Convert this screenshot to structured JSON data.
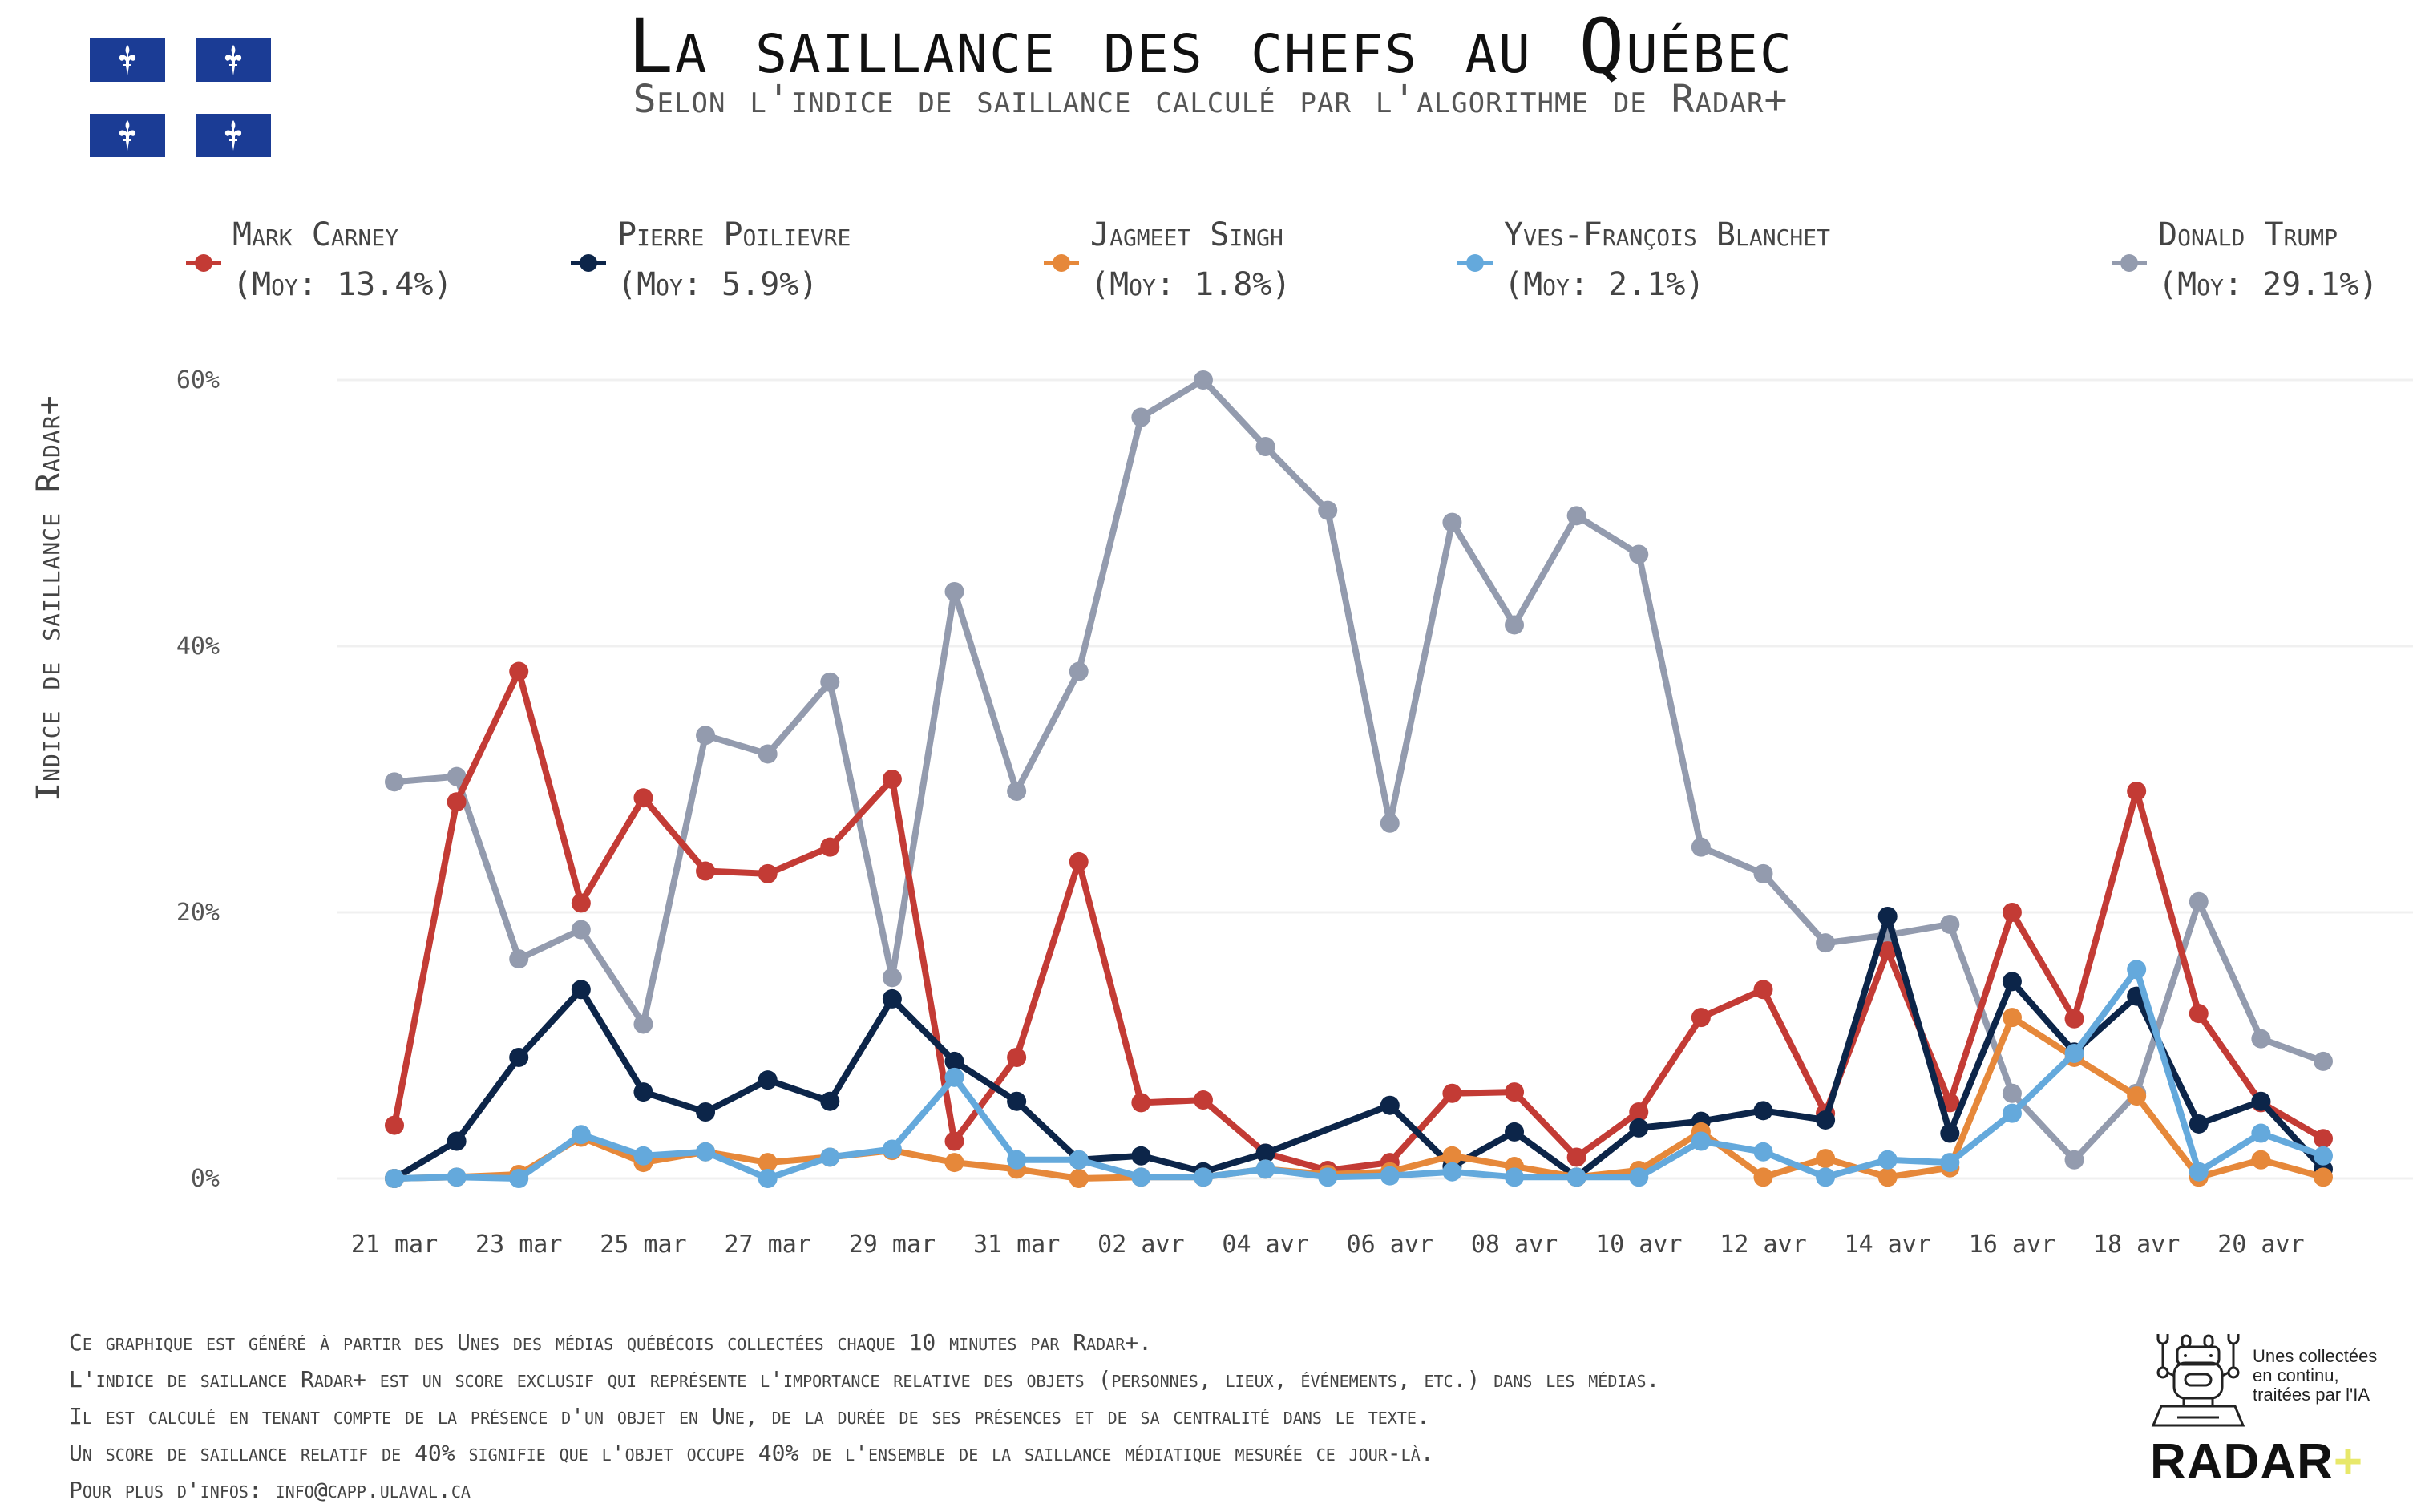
{
  "header": {
    "title": "La saillance des chefs au Québec",
    "subtitle": "Selon l'indice de saillance calculé par l'algorithme de Radar+",
    "flag_icon": "quebec-flag-icon"
  },
  "legend": [
    {
      "name": "Mark Carney",
      "avg": "(Moy: 13.4%)",
      "color": "#c33b35"
    },
    {
      "name": "Pierre Poilievre",
      "avg": "(Moy: 5.9%)",
      "color": "#0c2549"
    },
    {
      "name": "Jagmeet Singh",
      "avg": "(Moy: 1.8%)",
      "color": "#e6883a"
    },
    {
      "name": "Yves-François Blanchet",
      "avg": "(Moy: 2.1%)",
      "color": "#64a9dc"
    },
    {
      "name": "Donald Trump",
      "avg": "(Moy: 29.1%)",
      "color": "#939bae"
    }
  ],
  "footer": {
    "lines": [
      "Ce graphique est généré à partir des Unes des médias québécois collectées chaque 10 minutes par Radar+.",
      "L'indice de saillance Radar+ est un score exclusif qui représente l'importance relative des objets (personnes, lieux, événements, etc.) dans les médias.",
      "Il est calculé en tenant compte de la présence d'un objet en Une, de la durée de ses présences et de sa centralité dans le texte.",
      "Un score de saillance relatif de 40% signifie que l'objet occupe 40% de l'ensemble de la saillance médiatique mesurée ce jour-là.",
      "Pour plus d'infos: info@capp.ulaval.ca"
    ]
  },
  "logo": {
    "tagline": "Unes collectées en continu, traitées par l'IA",
    "wordmark": "RADAR",
    "plus": "+",
    "icon": "robot-icon"
  },
  "chart_data": {
    "type": "line",
    "title": "La saillance des chefs au Québec",
    "subtitle": "Selon l'indice de saillance calculé par l'algorithme de Radar+",
    "xlabel": "",
    "ylabel": "Indice de saillance Radar+",
    "ylim": [
      0,
      60
    ],
    "yticks": [
      0,
      20,
      40,
      60
    ],
    "ytick_labels": [
      "0%",
      "20%",
      "40%",
      "60%"
    ],
    "grid": true,
    "legend_position": "top",
    "x": [
      "21 mar",
      "22 mar",
      "23 mar",
      "24 mar",
      "25 mar",
      "26 mar",
      "27 mar",
      "28 mar",
      "29 mar",
      "30 mar",
      "31 mar",
      "01 avr",
      "02 avr",
      "03 avr",
      "04 avr",
      "05 avr",
      "06 avr",
      "07 avr",
      "08 avr",
      "09 avr",
      "10 avr",
      "11 avr",
      "12 avr",
      "13 avr",
      "14 avr",
      "15 avr",
      "16 avr",
      "17 avr",
      "18 avr",
      "19 avr",
      "20 avr",
      "21 avr"
    ],
    "xtick_labels": [
      "21 mar",
      "23 mar",
      "25 mar",
      "27 mar",
      "29 mar",
      "31 mar",
      "02 avr",
      "04 avr",
      "06 avr",
      "08 avr",
      "10 avr",
      "12 avr",
      "14 avr",
      "16 avr",
      "18 avr",
      "20 avr"
    ],
    "series": [
      {
        "name": "Mark Carney",
        "color": "#c33b35",
        "values": [
          4.0,
          28.3,
          38.1,
          20.7,
          28.6,
          23.1,
          22.9,
          24.9,
          30.0,
          2.8,
          9.1,
          23.8,
          5.7,
          5.9,
          1.9,
          0.6,
          1.2,
          6.4,
          6.5,
          1.6,
          5.0,
          12.1,
          14.2,
          4.9,
          17.1,
          5.7,
          20.0,
          12.0,
          29.1,
          12.4,
          5.7,
          3.0
        ]
      },
      {
        "name": "Pierre Poilievre",
        "color": "#0c2549",
        "values": [
          0.0,
          2.8,
          9.1,
          14.2,
          6.5,
          5.0,
          7.4,
          5.8,
          13.5,
          8.8,
          5.8,
          1.4,
          1.7,
          0.5,
          1.9,
          null,
          5.5,
          0.9,
          3.5,
          0.1,
          3.8,
          4.3,
          5.1,
          4.4,
          19.7,
          3.4,
          14.8,
          9.5,
          13.7,
          4.1,
          5.8,
          0.7
        ]
      },
      {
        "name": "Jagmeet Singh",
        "color": "#e6883a",
        "values": [
          0.0,
          0.1,
          0.3,
          3.1,
          1.2,
          2.0,
          1.2,
          1.6,
          2.1,
          1.2,
          0.7,
          0.0,
          0.1,
          0.1,
          0.7,
          0.3,
          0.5,
          1.7,
          0.9,
          0.1,
          0.6,
          3.5,
          0.1,
          1.5,
          0.1,
          0.8,
          12.1,
          9.1,
          6.2,
          0.1,
          1.4,
          0.1
        ]
      },
      {
        "name": "Yves-François Blanchet",
        "color": "#64a9dc",
        "values": [
          0.0,
          0.1,
          0.0,
          3.3,
          1.7,
          2.0,
          0.0,
          1.6,
          2.2,
          7.6,
          1.4,
          1.4,
          0.1,
          0.1,
          0.7,
          0.1,
          0.2,
          0.5,
          0.1,
          0.1,
          0.1,
          2.8,
          2.0,
          0.1,
          1.4,
          1.2,
          4.9,
          9.4,
          15.7,
          0.5,
          3.4,
          1.7
        ]
      },
      {
        "name": "Donald Trump",
        "color": "#939bae",
        "values": [
          29.8,
          30.2,
          16.5,
          18.7,
          11.6,
          33.3,
          31.9,
          37.3,
          15.1,
          44.1,
          29.1,
          38.1,
          57.2,
          60.0,
          55.0,
          50.2,
          26.7,
          49.3,
          41.6,
          49.8,
          46.9,
          24.9,
          22.9,
          17.7,
          18.3,
          19.1,
          6.4,
          1.4,
          6.4,
          20.8,
          10.5,
          8.8
        ]
      }
    ]
  }
}
